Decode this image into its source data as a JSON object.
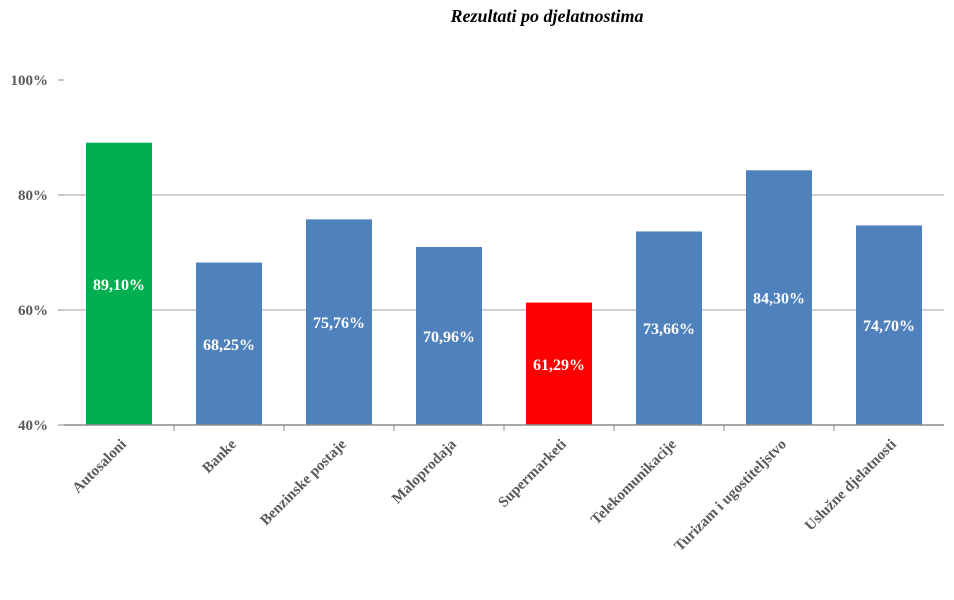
{
  "chart_data": {
    "type": "bar",
    "title": "Rezultati po djelatnostima",
    "xlabel": "",
    "ylabel": "",
    "ylim": [
      40,
      100
    ],
    "yticks": [
      40,
      60,
      80,
      100
    ],
    "ytick_labels": [
      "40%",
      "60%",
      "80%",
      "100%"
    ],
    "grid": true,
    "legend": "none",
    "categories": [
      "Autosaloni",
      "Banke",
      "Benzinske postaje",
      "Maloprodaja",
      "Supermarketi",
      "Telekomunikacije",
      "Turizam i ugostiteljstvo",
      "Uslužne djelatnosti"
    ],
    "values": [
      89.1,
      68.25,
      75.76,
      70.96,
      61.29,
      73.66,
      84.3,
      74.7
    ],
    "data_labels": [
      "89,10%",
      "68,25%",
      "75,76%",
      "70,96%",
      "61,29%",
      "73,66%",
      "84,30%",
      "74,70%"
    ],
    "colors": [
      "#00B050",
      "#4F81BD",
      "#4F81BD",
      "#4F81BD",
      "#FF0000",
      "#4F81BD",
      "#4F81BD",
      "#4F81BD"
    ]
  }
}
